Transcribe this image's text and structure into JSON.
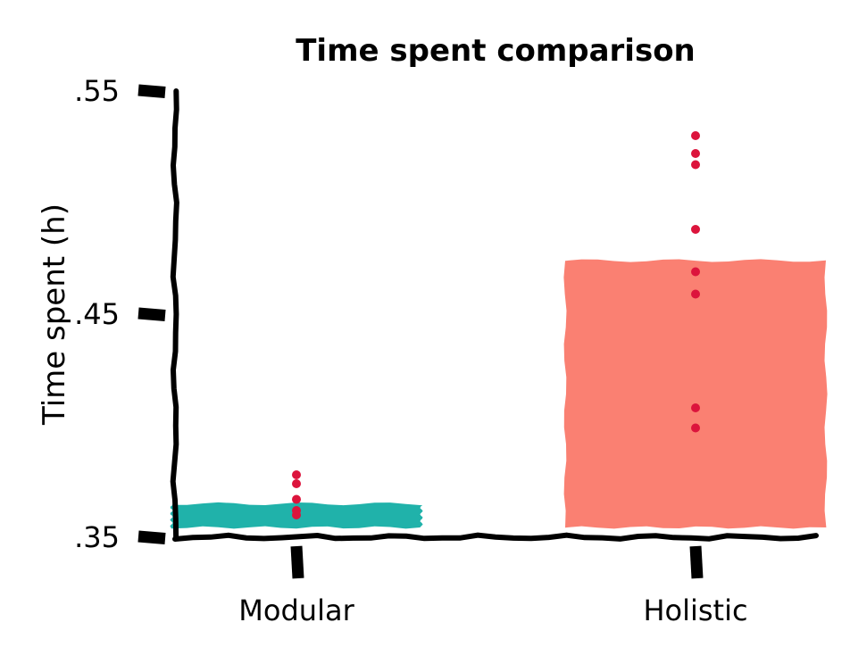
{
  "chart_data": {
    "type": "bar",
    "title": "Time spent comparison",
    "xlabel": "",
    "ylabel": "Time spent (h)",
    "ylim": [
      0.35,
      0.55
    ],
    "yticks": [
      0.35,
      0.45,
      0.55
    ],
    "ytick_labels": [
      ".35",
      ".45",
      ".55"
    ],
    "categories": [
      "Modular",
      "Holistic"
    ],
    "values": [
      0.365,
      0.474
    ],
    "bar_colors": [
      "#20b2aa",
      "#fa8072"
    ],
    "points": [
      [
        0.378,
        0.374,
        0.367,
        0.362,
        0.36
      ],
      [
        0.53,
        0.522,
        0.517,
        0.488,
        0.469,
        0.459,
        0.408,
        0.399
      ]
    ],
    "point_color": "#dc143c",
    "grid": false,
    "style": "xkcd"
  }
}
